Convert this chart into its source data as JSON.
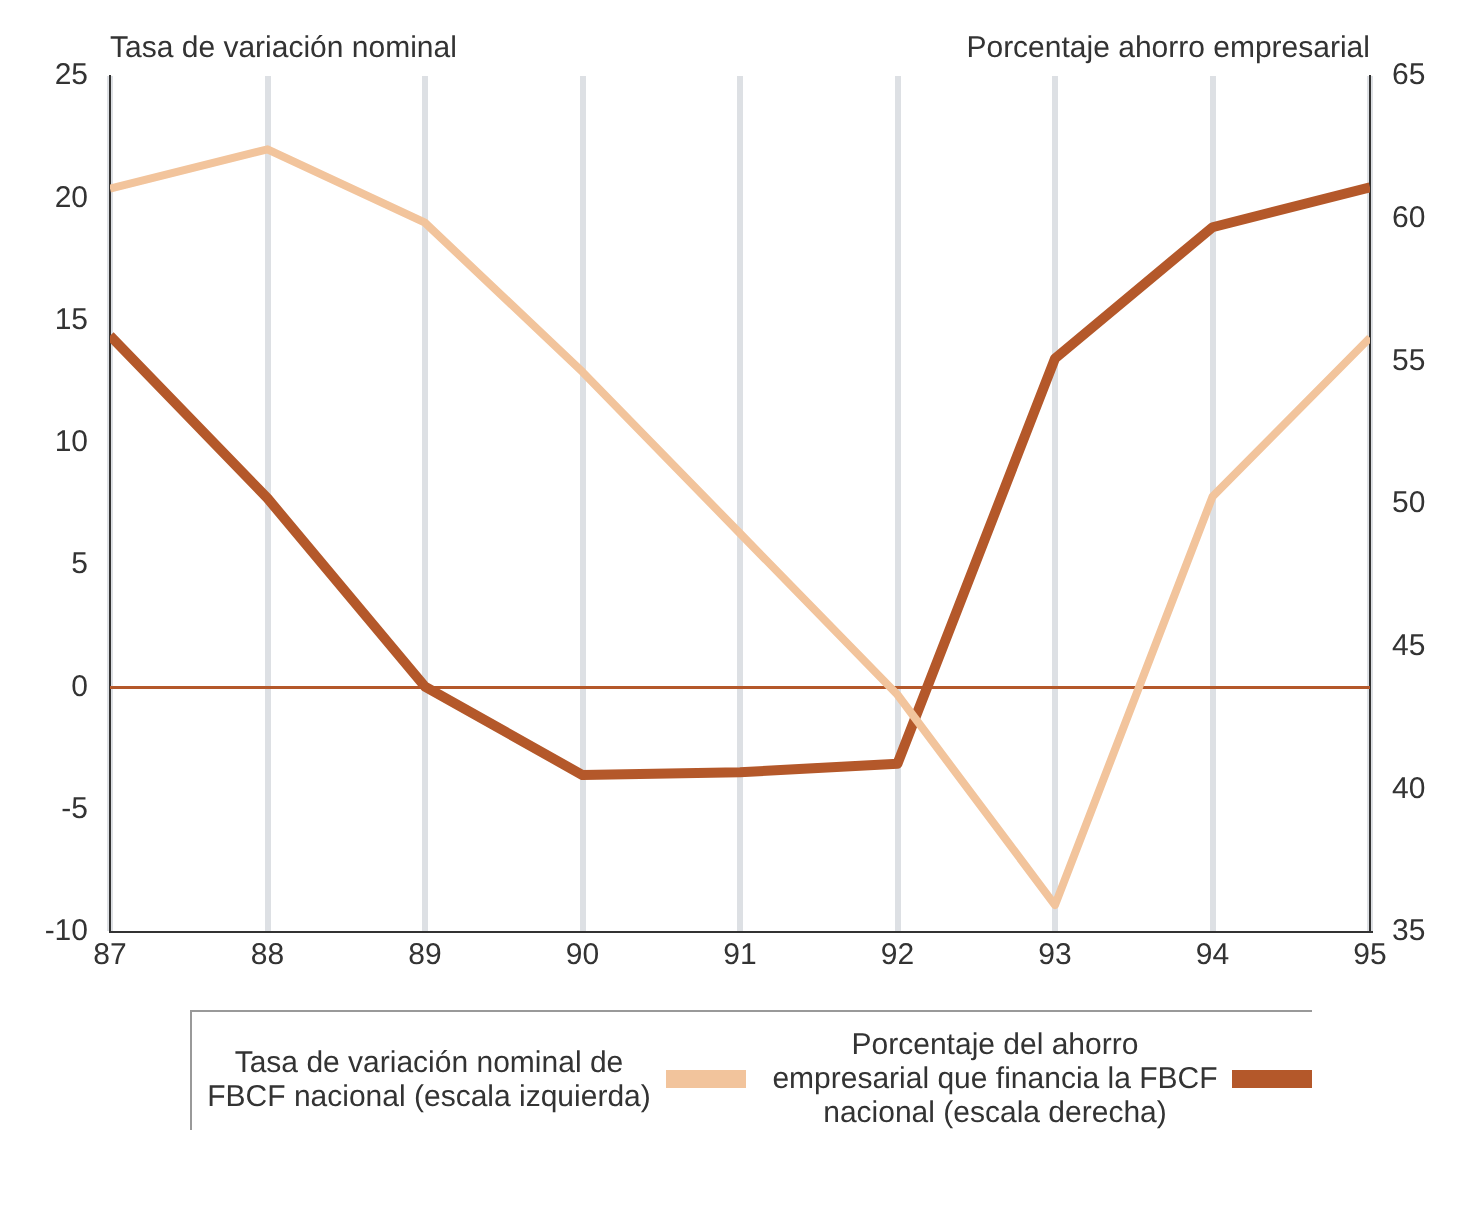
{
  "chart_data": {
    "type": "line",
    "ylabel": "Tasa de variación nominal",
    "y2label": "Porcentaje ahorro empresarial",
    "x": [
      87,
      88,
      89,
      90,
      91,
      92,
      93,
      94,
      95
    ],
    "xlim": [
      87,
      95
    ],
    "xticks": [
      87,
      88,
      89,
      90,
      91,
      92,
      93,
      94,
      95
    ],
    "ylim": [
      -10,
      25
    ],
    "yticks": [
      -10,
      -5,
      0,
      5,
      10,
      15,
      20,
      25
    ],
    "y2lim": [
      35,
      65
    ],
    "y2ticks": [
      35,
      40,
      45,
      50,
      55,
      60,
      65
    ],
    "series": [
      {
        "name": "Tasa de variación nominal de FBCF nacional (escala izquierda)",
        "color": "#f2c49c",
        "values": [
          20.4,
          22.0,
          19.0,
          12.9,
          6.3,
          -0.3,
          -8.9,
          7.8,
          14.3
        ]
      },
      {
        "name": "Porcentaje del ahorro empresarial que financia la FBCF nacional (escala derecha)",
        "color": "#b4582a",
        "axis": "y2",
        "values": [
          55.9,
          50.2,
          43.6,
          40.5,
          40.6,
          40.9,
          55.1,
          59.7,
          61.1
        ]
      }
    ],
    "ref_lines": [
      {
        "axis": "y",
        "value": 0,
        "color": "#b4582a"
      }
    ],
    "grid": "x",
    "legend": "bottom"
  }
}
